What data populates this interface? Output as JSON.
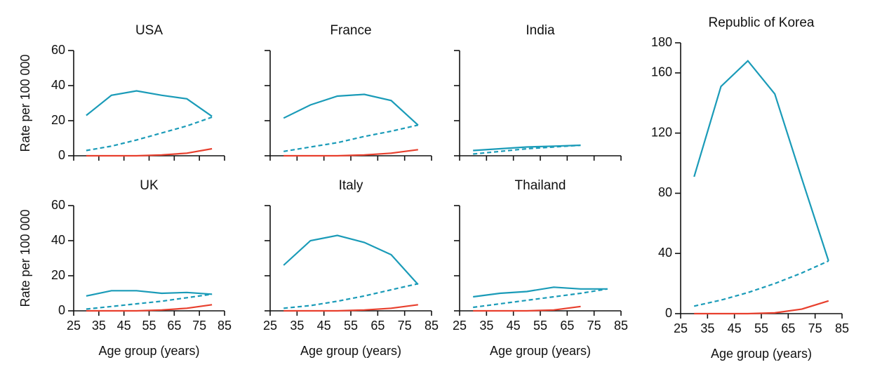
{
  "chart_data": [
    {
      "type": "line",
      "title": "USA",
      "ylabel": "Rate per 100 000",
      "x": [
        30,
        40,
        50,
        60,
        70,
        80
      ],
      "xlim": [
        25,
        85
      ],
      "xticks": [
        25,
        35,
        45,
        55,
        65,
        75,
        85
      ],
      "ylim": [
        0,
        60
      ],
      "yticks": [
        0,
        20,
        40,
        60
      ],
      "xtick_labels": false,
      "ytick_labels": true,
      "series": [
        {
          "color": "#1a9bb8",
          "dash": false,
          "values": [
            23,
            34.5,
            37,
            34.5,
            32.5,
            22.5
          ]
        },
        {
          "color": "#1a9bb8",
          "dash": true,
          "values": [
            3,
            5.5,
            9,
            13,
            17,
            22
          ]
        },
        {
          "color": "#e8402e",
          "dash": false,
          "values": [
            0,
            0,
            0,
            0.5,
            1.5,
            4
          ]
        }
      ]
    },
    {
      "type": "line",
      "title": "France",
      "x": [
        30,
        40,
        50,
        60,
        70,
        80
      ],
      "xlim": [
        25,
        85
      ],
      "xticks": [
        25,
        35,
        45,
        55,
        65,
        75,
        85
      ],
      "ylim": [
        0,
        60
      ],
      "yticks": [
        0,
        20,
        40,
        60
      ],
      "xtick_labels": false,
      "ytick_labels": false,
      "series": [
        {
          "color": "#1a9bb8",
          "dash": false,
          "values": [
            21.5,
            29,
            34,
            35,
            31.5,
            17.5
          ]
        },
        {
          "color": "#1a9bb8",
          "dash": true,
          "values": [
            2.5,
            5,
            7.5,
            11,
            14,
            17.5
          ]
        },
        {
          "color": "#e8402e",
          "dash": false,
          "values": [
            0,
            0,
            0,
            0.5,
            1.5,
            3.5
          ]
        }
      ]
    },
    {
      "type": "line",
      "title": "India",
      "x": [
        30,
        40,
        50,
        60,
        70
      ],
      "xlim": [
        25,
        85
      ],
      "xticks": [
        25,
        35,
        45,
        55,
        65,
        75,
        85
      ],
      "ylim": [
        0,
        60
      ],
      "yticks": [
        0,
        20,
        40,
        60
      ],
      "xtick_labels": false,
      "ytick_labels": false,
      "series": [
        {
          "color": "#1a9bb8",
          "dash": false,
          "values": [
            3,
            4,
            5,
            5.5,
            6
          ]
        },
        {
          "color": "#1a9bb8",
          "dash": true,
          "values": [
            1,
            2.5,
            4,
            5,
            6
          ]
        }
      ]
    },
    {
      "type": "line",
      "title": "UK",
      "ylabel": "Rate per 100 000",
      "xlabel": "Age group (years)",
      "x": [
        30,
        40,
        50,
        60,
        70,
        80
      ],
      "xlim": [
        25,
        85
      ],
      "xticks": [
        25,
        35,
        45,
        55,
        65,
        75,
        85
      ],
      "ylim": [
        0,
        60
      ],
      "yticks": [
        0,
        20,
        40,
        60
      ],
      "xtick_labels": true,
      "ytick_labels": true,
      "series": [
        {
          "color": "#1a9bb8",
          "dash": false,
          "values": [
            8.5,
            11.5,
            11.5,
            10,
            10.5,
            9.5
          ]
        },
        {
          "color": "#1a9bb8",
          "dash": true,
          "values": [
            1,
            2.5,
            4,
            5.5,
            7.5,
            9.5
          ]
        },
        {
          "color": "#e8402e",
          "dash": false,
          "values": [
            0,
            0,
            0,
            0.5,
            1.5,
            3.5
          ]
        }
      ]
    },
    {
      "type": "line",
      "title": "Italy",
      "xlabel": "Age group (years)",
      "x": [
        30,
        40,
        50,
        60,
        70,
        80
      ],
      "xlim": [
        25,
        85
      ],
      "xticks": [
        25,
        35,
        45,
        55,
        65,
        75,
        85
      ],
      "ylim": [
        0,
        60
      ],
      "yticks": [
        0,
        20,
        40,
        60
      ],
      "xtick_labels": true,
      "ytick_labels": false,
      "series": [
        {
          "color": "#1a9bb8",
          "dash": false,
          "values": [
            26,
            40,
            43,
            39,
            32,
            15
          ]
        },
        {
          "color": "#1a9bb8",
          "dash": true,
          "values": [
            1.5,
            3,
            5.5,
            8.5,
            12,
            15.5
          ]
        },
        {
          "color": "#e8402e",
          "dash": false,
          "values": [
            0,
            0,
            0,
            0.5,
            1.5,
            3.5
          ]
        }
      ]
    },
    {
      "type": "line",
      "title": "Thailand",
      "xlabel": "Age group (years)",
      "x": [
        30,
        40,
        50,
        60,
        70,
        80
      ],
      "xlim": [
        25,
        85
      ],
      "xticks": [
        25,
        35,
        45,
        55,
        65,
        75,
        85
      ],
      "ylim": [
        0,
        60
      ],
      "yticks": [
        0,
        20,
        40,
        60
      ],
      "xtick_labels": true,
      "ytick_labels": false,
      "series": [
        {
          "color": "#1a9bb8",
          "dash": false,
          "values": [
            8,
            10,
            11,
            13.5,
            12.5,
            12.5
          ]
        },
        {
          "color": "#1a9bb8",
          "dash": true,
          "values": [
            2,
            4,
            6,
            8,
            10,
            12.5
          ]
        },
        {
          "color": "#e8402e",
          "dash": false,
          "values": [
            0,
            0,
            0,
            0.5,
            2.5,
            null
          ]
        }
      ]
    },
    {
      "type": "line",
      "title": "Republic of Korea",
      "xlabel": "Age group (years)",
      "x": [
        30,
        40,
        50,
        60,
        70,
        80
      ],
      "xlim": [
        25,
        85
      ],
      "xticks": [
        25,
        35,
        45,
        55,
        65,
        75,
        85
      ],
      "ylim": [
        0,
        180
      ],
      "yticks": [
        0,
        40,
        80,
        120,
        160,
        180
      ],
      "xtick_labels": true,
      "ytick_labels": true,
      "series": [
        {
          "color": "#1a9bb8",
          "dash": false,
          "values": [
            91,
            151,
            168,
            146,
            90,
            35
          ]
        },
        {
          "color": "#1a9bb8",
          "dash": true,
          "values": [
            5,
            9,
            14,
            20,
            27,
            35
          ]
        },
        {
          "color": "#e8402e",
          "dash": false,
          "values": [
            0,
            0,
            0,
            0.5,
            3,
            8.5
          ]
        }
      ]
    }
  ]
}
